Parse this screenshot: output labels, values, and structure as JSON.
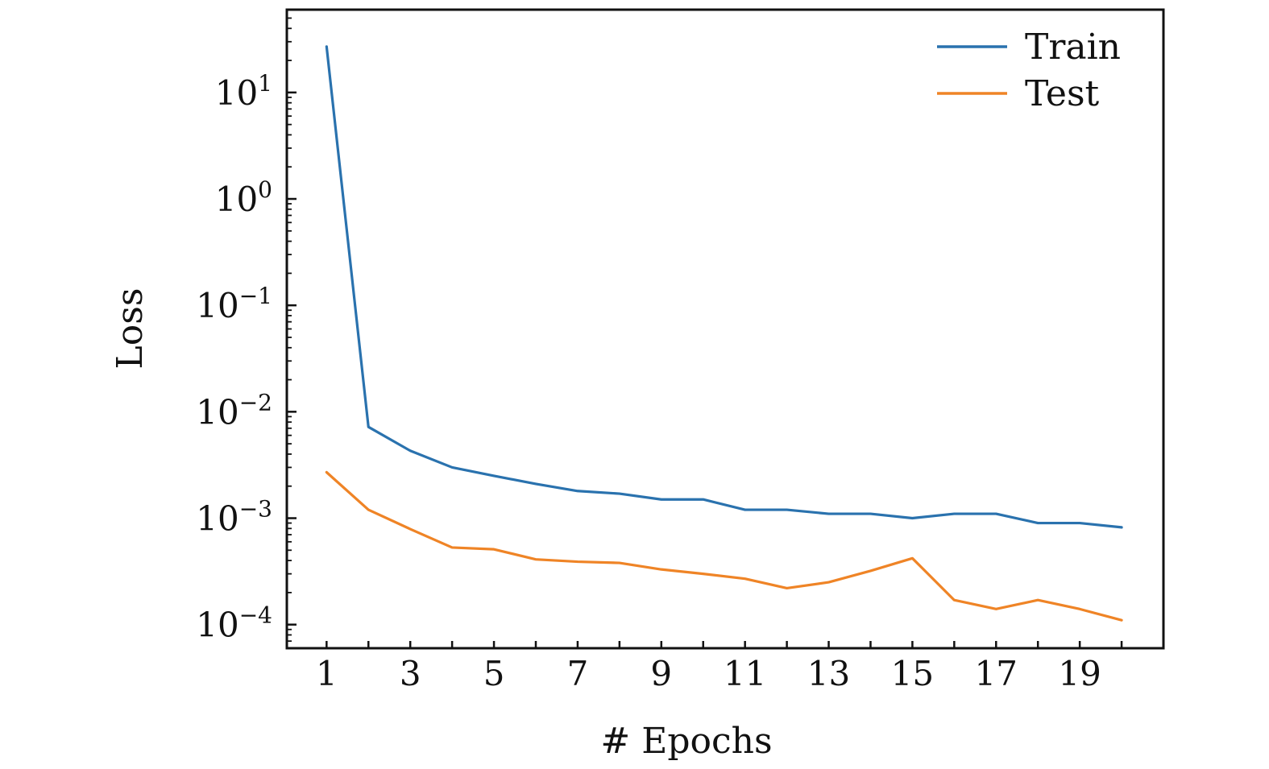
{
  "chart_data": {
    "type": "line",
    "title": "",
    "xlabel": "# Epochs",
    "ylabel": "Loss",
    "yscale": "log",
    "xlim": [
      0.05,
      21.0
    ],
    "ylim": [
      6e-05,
      60
    ],
    "grid": false,
    "legend": {
      "position": "top-right"
    },
    "x_ticks": [
      1,
      3,
      5,
      7,
      9,
      11,
      13,
      15,
      17,
      19
    ],
    "x_tick_labels": [
      "1",
      "3",
      "5",
      "7",
      "9",
      "11",
      "13",
      "15",
      "17",
      "19"
    ],
    "y_ticks": [
      {
        "value": 10,
        "base": "10",
        "exp": "1"
      },
      {
        "value": 1,
        "base": "10",
        "exp": "0"
      },
      {
        "value": 0.1,
        "base": "10",
        "exp": "−1"
      },
      {
        "value": 0.01,
        "base": "10",
        "exp": "−2"
      },
      {
        "value": 0.001,
        "base": "10",
        "exp": "−3"
      },
      {
        "value": 0.0001,
        "base": "10",
        "exp": "−4"
      }
    ],
    "x": [
      1,
      2,
      3,
      4,
      5,
      6,
      7,
      8,
      9,
      10,
      11,
      12,
      13,
      14,
      15,
      16,
      17,
      18,
      19,
      20
    ],
    "series": [
      {
        "name": "Train",
        "color": "#2a72ae",
        "values": [
          27,
          0.0072,
          0.0043,
          0.003,
          0.0025,
          0.0021,
          0.0018,
          0.0017,
          0.0015,
          0.0015,
          0.0012,
          0.0012,
          0.0011,
          0.0011,
          0.001,
          0.0011,
          0.0011,
          0.0009,
          0.0009,
          0.00082
        ]
      },
      {
        "name": "Test",
        "color": "#ef8426",
        "values": [
          0.0027,
          0.0012,
          0.00079,
          0.00053,
          0.00051,
          0.00041,
          0.00039,
          0.00038,
          0.00033,
          0.0003,
          0.00027,
          0.00022,
          0.00025,
          0.00032,
          0.00042,
          0.00017,
          0.00014,
          0.00017,
          0.00014,
          0.00011
        ]
      }
    ]
  }
}
